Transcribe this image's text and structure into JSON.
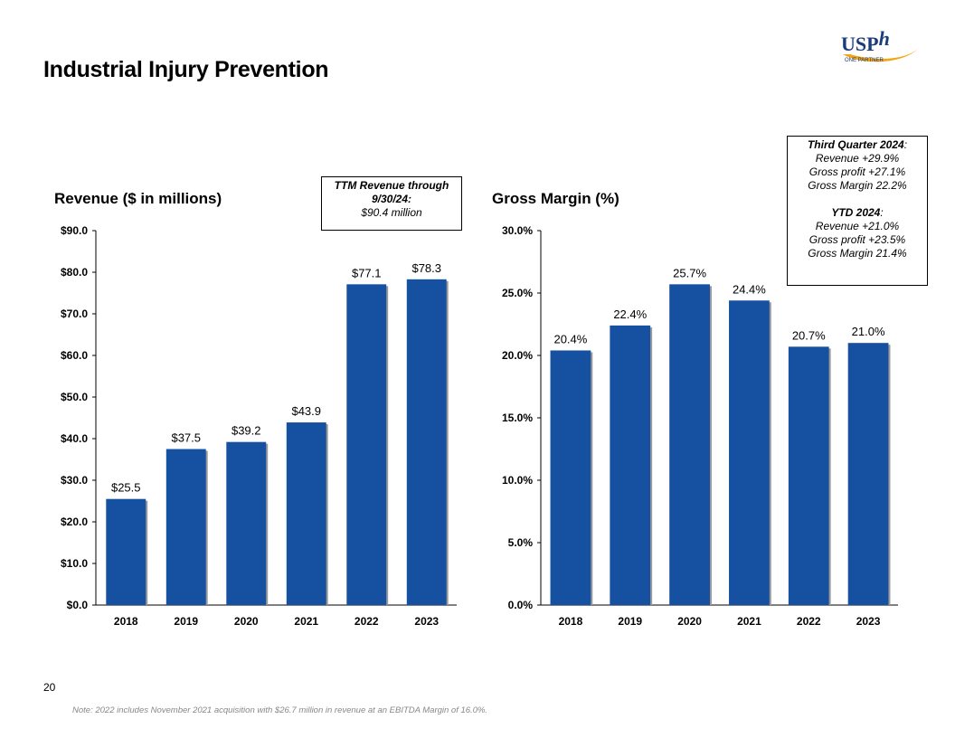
{
  "page": {
    "title": "Industrial Injury Prevention",
    "page_number": "20",
    "note": "Note: 2022 includes November 2021 acquisition with $26.7 million in revenue at an EBITDA Margin of 16.0%.",
    "logo": {
      "text": "USP",
      "text_italic": "h",
      "tagline": "ONE PARTNER"
    }
  },
  "colors": {
    "bar": "#1650A0",
    "logo_text": "#1A3C7A",
    "logo_swoosh": "#F2A516"
  },
  "ttm_callout": {
    "line1": "TTM Revenue through",
    "line2": "9/30/24:",
    "line3": "$90.4 million"
  },
  "q3_callout": {
    "q_heading": "Third Quarter 2024",
    "q_heading_suffix": ":",
    "q_lines": [
      "Revenue +29.9%",
      "Gross profit +27.1%",
      "Gross Margin 22.2%"
    ],
    "ytd_heading": "YTD 2024",
    "ytd_heading_suffix": ":",
    "ytd_lines": [
      "Revenue +21.0%",
      "Gross profit +23.5%",
      "Gross Margin 21.4%"
    ]
  },
  "chart_data": [
    {
      "type": "bar",
      "title": "Revenue ($ in millions)",
      "categories": [
        "2018",
        "2019",
        "2020",
        "2021",
        "2022",
        "2023"
      ],
      "values": [
        25.5,
        37.5,
        39.2,
        43.9,
        77.1,
        78.3
      ],
      "data_labels": [
        "$25.5",
        "$37.5",
        "$39.2",
        "$43.9",
        "$77.1",
        "$78.3"
      ],
      "yticks": [
        0,
        10,
        20,
        30,
        40,
        50,
        60,
        70,
        80,
        90
      ],
      "ytick_labels": [
        "$0.0",
        "$10.0",
        "$20.0",
        "$30.0",
        "$40.0",
        "$50.0",
        "$60.0",
        "$70.0",
        "$80.0",
        "$90.0"
      ],
      "ylim": [
        0,
        90
      ],
      "xlabel": "",
      "ylabel": "",
      "grid": false
    },
    {
      "type": "bar",
      "title": "Gross Margin (%)",
      "categories": [
        "2018",
        "2019",
        "2020",
        "2021",
        "2022",
        "2023"
      ],
      "values": [
        20.4,
        22.4,
        25.7,
        24.4,
        20.7,
        21.0
      ],
      "data_labels": [
        "20.4%",
        "22.4%",
        "25.7%",
        "24.4%",
        "20.7%",
        "21.0%"
      ],
      "yticks": [
        0,
        5,
        10,
        15,
        20,
        25,
        30
      ],
      "ytick_labels": [
        "0.0%",
        "5.0%",
        "10.0%",
        "15.0%",
        "20.0%",
        "25.0%",
        "30.0%"
      ],
      "ylim": [
        0,
        30
      ],
      "xlabel": "",
      "ylabel": "",
      "grid": false
    }
  ]
}
